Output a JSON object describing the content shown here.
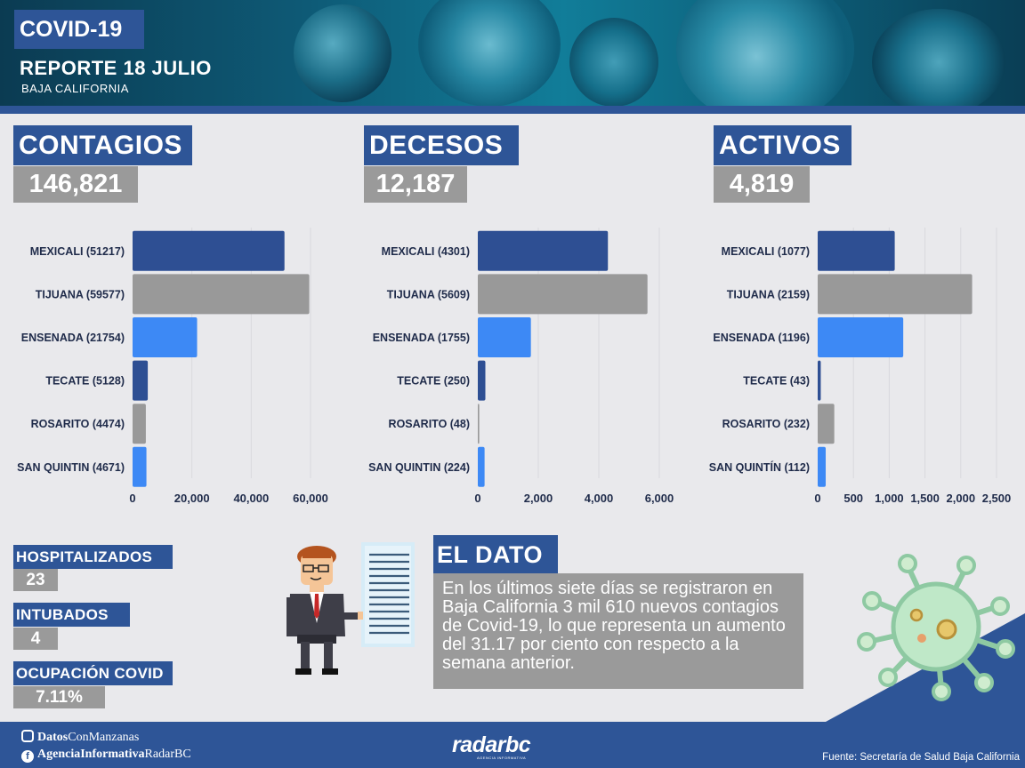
{
  "header": {
    "badge": "COVID-19",
    "report_title": "REPORTE 18 JULIO",
    "region": "BAJA CALIFORNIA"
  },
  "kpis": [
    {
      "label": "CONTAGIOS",
      "value": "146,821"
    },
    {
      "label": "DECESOS",
      "value": "12,187"
    },
    {
      "label": "ACTIVOS",
      "value": "4,819"
    }
  ],
  "colors": {
    "navy": "#2e5597",
    "gray": "#9a9a9a",
    "blue": "#3d89f5",
    "bar_navy": "#2e4f93",
    "bar_gray": "#999999"
  },
  "chart_data": [
    {
      "type": "bar",
      "orientation": "horizontal",
      "title": "CONTAGIOS",
      "categories": [
        "MEXICALI (51217)",
        "TIJUANA (59577)",
        "ENSENADA (21754)",
        "TECATE (5128)",
        "ROSARITO (4474)",
        "SAN QUINTIN (4671)"
      ],
      "values": [
        51217,
        59577,
        21754,
        5128,
        4474,
        4671
      ],
      "bar_colors": [
        "#2e4f93",
        "#999999",
        "#3d89f5",
        "#2e4f93",
        "#999999",
        "#3d89f5"
      ],
      "xlim": [
        0,
        66000
      ],
      "ticks": [
        0,
        20000,
        40000,
        60000
      ],
      "tick_labels": [
        "0",
        "20,000",
        "40,000",
        "60,000"
      ],
      "grid": true
    },
    {
      "type": "bar",
      "orientation": "horizontal",
      "title": "DECESOS",
      "categories": [
        "MEXICALI (4301)",
        "TIJUANA (5609)",
        "ENSENADA (1755)",
        "TECATE (250)",
        "ROSARITO (48)",
        "SAN QUINTIN (224)"
      ],
      "values": [
        4301,
        5609,
        1755,
        250,
        48,
        224
      ],
      "bar_colors": [
        "#2e4f93",
        "#999999",
        "#3d89f5",
        "#2e4f93",
        "#999999",
        "#3d89f5"
      ],
      "xlim": [
        0,
        6000
      ],
      "ticks": [
        0,
        2000,
        4000,
        6000
      ],
      "tick_labels": [
        "0",
        "2,000",
        "4,000",
        "6,000"
      ],
      "grid": true
    },
    {
      "type": "bar",
      "orientation": "horizontal",
      "title": "ACTIVOS",
      "categories": [
        "MEXICALI (1077)",
        "TIJUANA (2159)",
        "ENSENADA (1196)",
        "TECATE (43)",
        "ROSARITO (232)",
        "SAN QUINTÍN (112)"
      ],
      "values": [
        1077,
        2159,
        1196,
        43,
        232,
        112
      ],
      "bar_colors": [
        "#2e4f93",
        "#999999",
        "#3d89f5",
        "#2e4f93",
        "#999999",
        "#3d89f5"
      ],
      "xlim": [
        0,
        2500
      ],
      "ticks": [
        0,
        500,
        1000,
        1500,
        2000,
        2500
      ],
      "tick_labels": [
        "0",
        "500",
        "1,000",
        "1,500",
        "2,000",
        "2,500"
      ],
      "grid": true
    }
  ],
  "stats": [
    {
      "label": "HOSPITALIZADOS",
      "value": "23"
    },
    {
      "label": "INTUBADOS",
      "value": "4"
    },
    {
      "label": "OCUPACIÓN COVID",
      "value": "7.11%"
    }
  ],
  "dato": {
    "title": "EL DATO",
    "text": "En los últimos siete días se registraron en Baja California 3 mil 610 nuevos contagios de Covid-19, lo que representa un aumento del 31.17 por ciento con respecto a la semana anterior."
  },
  "footer": {
    "instagram_bold": "Datos",
    "instagram_rest": "ConManzanas",
    "facebook_bold": "AgenciaInformativa",
    "facebook_rest": "RadarBC",
    "brand": "radarbc",
    "brand_sub": "AGENCIA INFORMATIVA",
    "source": "Fuente: Secretaría de Salud Baja California"
  },
  "icons": [
    "instagram-icon",
    "facebook-icon",
    "businessman-illustration",
    "document-illustration",
    "virus-illustration"
  ]
}
